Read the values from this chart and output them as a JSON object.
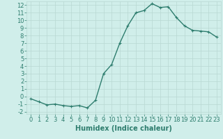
{
  "x": [
    0,
    1,
    2,
    3,
    4,
    5,
    6,
    7,
    8,
    9,
    10,
    11,
    12,
    13,
    14,
    15,
    16,
    17,
    18,
    19,
    20,
    21,
    22,
    23
  ],
  "y": [
    -0.3,
    -0.7,
    -1.1,
    -1.0,
    -1.2,
    -1.3,
    -1.2,
    -1.5,
    -0.5,
    3.0,
    4.2,
    7.0,
    9.3,
    11.0,
    11.3,
    12.2,
    11.7,
    11.8,
    10.4,
    9.3,
    8.7,
    8.6,
    8.5,
    7.8
  ],
  "line_color": "#2e7d6e",
  "marker": "+",
  "marker_size": 3,
  "background_color": "#d0eeea",
  "grid_color": "#b8d8d2",
  "xlabel": "Humidex (Indice chaleur)",
  "xlim": [
    -0.5,
    23.5
  ],
  "ylim": [
    -2.3,
    12.5
  ],
  "yticks": [
    -2,
    -1,
    0,
    1,
    2,
    3,
    4,
    5,
    6,
    7,
    8,
    9,
    10,
    11,
    12
  ],
  "xticks": [
    0,
    1,
    2,
    3,
    4,
    5,
    6,
    7,
    8,
    9,
    10,
    11,
    12,
    13,
    14,
    15,
    16,
    17,
    18,
    19,
    20,
    21,
    22,
    23
  ],
  "tick_color": "#2e7d6e",
  "xlabel_color": "#2e7d6e",
  "xlabel_fontsize": 7,
  "tick_fontsize": 6,
  "line_width": 1.0,
  "marker_linewidth": 0.8
}
